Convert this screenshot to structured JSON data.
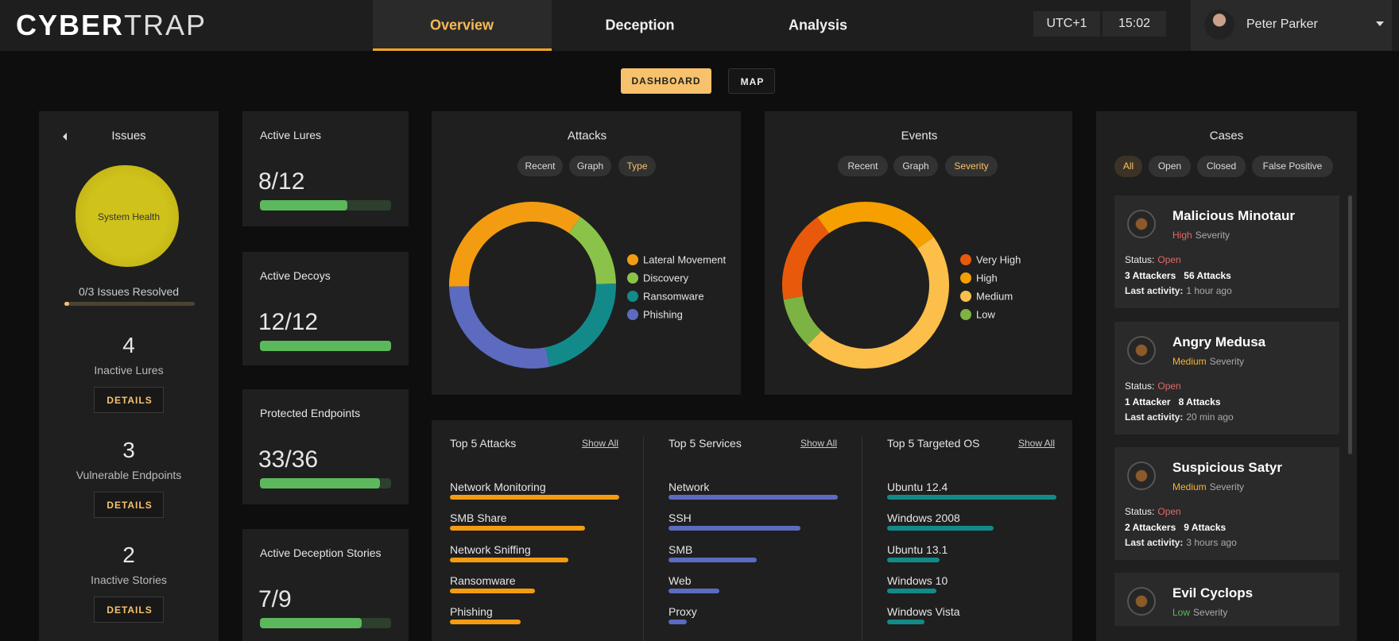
{
  "header": {
    "logo": {
      "bold": "CYBER",
      "light": "TRAP"
    },
    "nav": [
      "Overview",
      "Deception",
      "Analysis"
    ],
    "active_nav": 0,
    "timezone": "UTC+1",
    "time": "15:02",
    "user": "Peter Parker"
  },
  "view_toggle": [
    "DASHBOARD",
    "MAP"
  ],
  "active_view": 0,
  "issues": {
    "title": "Issues",
    "health": "System Health",
    "resolved_label": "0/3 Issues Resolved",
    "resolved": 0,
    "total": 3,
    "items": [
      {
        "value": 4,
        "label": "Inactive Lures",
        "button": "DETAILS"
      },
      {
        "value": 3,
        "label": "Vulnerable Endpoints",
        "button": "DETAILS"
      },
      {
        "value": 2,
        "label": "Inactive Stories",
        "button": "DETAILS"
      }
    ]
  },
  "stats": [
    {
      "label": "Active Lures",
      "value_label": "8/12",
      "value": 8,
      "max": 12
    },
    {
      "label": "Active Decoys",
      "value_label": "12/12",
      "value": 12,
      "max": 12
    },
    {
      "label": "Protected Endpoints",
      "value_label": "33/36",
      "value": 33,
      "max": 36
    },
    {
      "label": "Active Deception Stories",
      "value_label": "7/9",
      "value": 7,
      "max": 9
    }
  ],
  "attacks": {
    "type": "donut",
    "title": "Attacks",
    "tabs": [
      "Recent",
      "Graph",
      "Type"
    ],
    "active_tab": 2,
    "series": [
      {
        "name": "Lateral Movement",
        "color": "#f39c12",
        "value": 35
      },
      {
        "name": "Discovery",
        "color": "#8bc34a",
        "value": 15
      },
      {
        "name": "Ransomware",
        "color": "#138a8a",
        "value": 22
      },
      {
        "name": "Phishing",
        "color": "#5c6bc0",
        "value": 28
      }
    ]
  },
  "events": {
    "type": "donut",
    "title": "Events",
    "tabs": [
      "Recent",
      "Graph",
      "Severity"
    ],
    "active_tab": 2,
    "series": [
      {
        "name": "Very High",
        "color": "#e8590c",
        "value": 18
      },
      {
        "name": "High",
        "color": "#f59f00",
        "value": 25
      },
      {
        "name": "Medium",
        "color": "#fbbf4a",
        "value": 47
      },
      {
        "name": "Low",
        "color": "#7cb342",
        "value": 10
      }
    ]
  },
  "top5": [
    {
      "title": "Top 5 Attacks",
      "link": "Show All",
      "color": "#f39c12",
      "items": [
        {
          "name": "Network Monitoring",
          "value": 100
        },
        {
          "name": "SMB Share",
          "value": 80
        },
        {
          "name": "Network Sniffing",
          "value": 70
        },
        {
          "name": "Ransomware",
          "value": 50
        },
        {
          "name": "Phishing",
          "value": 42
        }
      ]
    },
    {
      "title": "Top 5 Services",
      "link": "Show All",
      "color": "#5c6bc0",
      "items": [
        {
          "name": "Network",
          "value": 100
        },
        {
          "name": "SSH",
          "value": 78
        },
        {
          "name": "SMB",
          "value": 52
        },
        {
          "name": "Web",
          "value": 30
        },
        {
          "name": "Proxy",
          "value": 11
        }
      ]
    },
    {
      "title": "Top 5 Targeted OS",
      "link": "Show All",
      "color": "#138a8a",
      "items": [
        {
          "name": "Ubuntu 12.4",
          "value": 100
        },
        {
          "name": "Windows 2008",
          "value": 63
        },
        {
          "name": "Ubuntu 13.1",
          "value": 31
        },
        {
          "name": "Windows 10",
          "value": 29
        },
        {
          "name": "Windows Vista",
          "value": 22
        }
      ]
    }
  ],
  "cases": {
    "title": "Cases",
    "filters": [
      "All",
      "Open",
      "Closed",
      "False Positive"
    ],
    "active_filter": 0,
    "items": [
      {
        "name": "Malicious Minotaur",
        "severity": "High",
        "severity_text": "Severity",
        "color": "#e0686a",
        "status_label": "Status:",
        "status": "Open",
        "attackers": "3 Attackers",
        "attacks": "56 Attacks",
        "activity_label": "Last activity:",
        "activity": "1 hour ago"
      },
      {
        "name": "Angry Medusa",
        "severity": "Medium",
        "severity_text": "Severity",
        "color": "#f5b335",
        "status_label": "Status:",
        "status": "Open",
        "attackers": "1 Attacker",
        "attacks": "8 Attacks",
        "activity_label": "Last activity:",
        "activity": "20 min ago"
      },
      {
        "name": "Suspicious Satyr",
        "severity": "Medium",
        "severity_text": "Severity",
        "color": "#f5b335",
        "status_label": "Status:",
        "status": "Open",
        "attackers": "2 Attackers",
        "attacks": "9 Attacks",
        "activity_label": "Last activity:",
        "activity": "3 hours ago"
      },
      {
        "name": "Evil Cyclops",
        "severity": "Low",
        "severity_text": "Severity",
        "color": "#5cb85c"
      }
    ]
  }
}
